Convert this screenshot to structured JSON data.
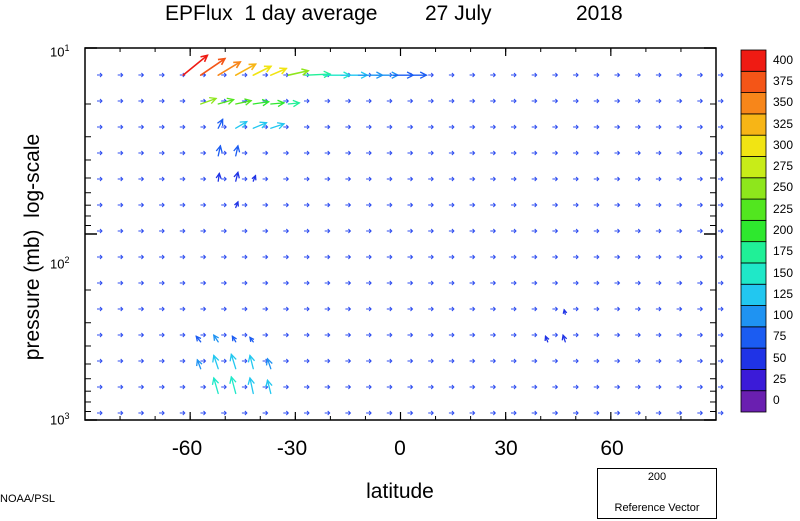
{
  "title": {
    "main": "EPFlux  1 day average",
    "date": "27 July",
    "year": "2018"
  },
  "credit": "NOAA/PSL",
  "reference": {
    "magnitude": "200",
    "label": "Reference Vector",
    "color": "#3cf07a"
  },
  "chart_data": {
    "type": "vector-field",
    "title": "EPFlux  1 day average  27 July  2018",
    "xlabel": "latitude",
    "ylabel": "pressure (mb)  log-scale",
    "xlim": [
      -90,
      90
    ],
    "ylim": [
      1000,
      10
    ],
    "y_scale": "log",
    "x_ticks": [
      "-60",
      "-30",
      "0",
      "30",
      "60"
    ],
    "y_ticks": [
      {
        "base": "10",
        "exp": "1"
      },
      {
        "base": "10",
        "exp": "2"
      },
      {
        "base": "10",
        "exp": "3"
      }
    ],
    "colorbar": {
      "levels": [
        0,
        25,
        50,
        75,
        100,
        125,
        150,
        175,
        200,
        225,
        250,
        275,
        300,
        325,
        350,
        375,
        400
      ],
      "colors": [
        "#6a1fb0",
        "#3b1bd8",
        "#1f33e6",
        "#1b5cf2",
        "#1f93f2",
        "#22c7f0",
        "#1fe8c8",
        "#20f097",
        "#2ee82e",
        "#52e61f",
        "#8ee61c",
        "#c8ec18",
        "#f1e413",
        "#f7b516",
        "#f7861a",
        "#f45517",
        "#ef1b13"
      ]
    },
    "vectors": [
      {
        "lat": -62,
        "p": 14,
        "u": 22,
        "v": 18,
        "mag": 400
      },
      {
        "lat": -57,
        "p": 14,
        "u": 22,
        "v": 15,
        "mag": 380
      },
      {
        "lat": -52,
        "p": 14,
        "u": 20,
        "v": 12,
        "mag": 360
      },
      {
        "lat": -47,
        "p": 14,
        "u": 18,
        "v": 10,
        "mag": 340
      },
      {
        "lat": -42,
        "p": 14,
        "u": 16,
        "v": 8,
        "mag": 320
      },
      {
        "lat": -37,
        "p": 14,
        "u": 14,
        "v": 6,
        "mag": 300
      },
      {
        "lat": -32,
        "p": 14,
        "u": 18,
        "v": 4,
        "mag": 260
      },
      {
        "lat": -27,
        "p": 14,
        "u": 22,
        "v": 1,
        "mag": 190
      },
      {
        "lat": -22,
        "p": 14,
        "u": 24,
        "v": 0,
        "mag": 150
      },
      {
        "lat": -17,
        "p": 14,
        "u": 24,
        "v": 0,
        "mag": 130
      },
      {
        "lat": -12,
        "p": 14,
        "u": 22,
        "v": 0,
        "mag": 110
      },
      {
        "lat": -7,
        "p": 14,
        "u": 20,
        "v": 0,
        "mag": 100
      },
      {
        "lat": -2,
        "p": 14,
        "u": 18,
        "v": 0,
        "mag": 90
      },
      {
        "lat": 3,
        "p": 14,
        "u": 14,
        "v": 0,
        "mag": 80
      },
      {
        "lat": -57,
        "p": 20,
        "u": 14,
        "v": 5,
        "mag": 250
      },
      {
        "lat": -52,
        "p": 20,
        "u": 14,
        "v": 4,
        "mag": 240
      },
      {
        "lat": -47,
        "p": 20,
        "u": 14,
        "v": 3,
        "mag": 225
      },
      {
        "lat": -42,
        "p": 20,
        "u": 14,
        "v": 2,
        "mag": 210
      },
      {
        "lat": -37,
        "p": 20,
        "u": 12,
        "v": 1,
        "mag": 200
      },
      {
        "lat": -32,
        "p": 20,
        "u": 10,
        "v": 1,
        "mag": 180
      },
      {
        "lat": -47,
        "p": 27,
        "u": 10,
        "v": 6,
        "mag": 140
      },
      {
        "lat": -42,
        "p": 27,
        "u": 12,
        "v": 5,
        "mag": 140
      },
      {
        "lat": -37,
        "p": 27,
        "u": 12,
        "v": 4,
        "mag": 130
      },
      {
        "lat": -52,
        "p": 27,
        "u": 4,
        "v": 8,
        "mag": 90
      },
      {
        "lat": -52,
        "p": 38,
        "u": 2,
        "v": 9,
        "mag": 80
      },
      {
        "lat": -47,
        "p": 38,
        "u": 2,
        "v": 9,
        "mag": 80
      },
      {
        "lat": -52,
        "p": 52,
        "u": 1,
        "v": 7,
        "mag": 70
      },
      {
        "lat": -47,
        "p": 52,
        "u": 2,
        "v": 8,
        "mag": 70
      },
      {
        "lat": -42,
        "p": 52,
        "u": 2,
        "v": 5,
        "mag": 60
      },
      {
        "lat": -47,
        "p": 72,
        "u": 2,
        "v": 5,
        "mag": 55
      },
      {
        "lat": -57,
        "p": 380,
        "u": -4,
        "v": 5,
        "mag": 90
      },
      {
        "lat": -52,
        "p": 380,
        "u": -4,
        "v": 6,
        "mag": 100
      },
      {
        "lat": -47,
        "p": 380,
        "u": -3,
        "v": 5,
        "mag": 90
      },
      {
        "lat": -42,
        "p": 380,
        "u": -3,
        "v": 4,
        "mag": 80
      },
      {
        "lat": -52,
        "p": 530,
        "u": -4,
        "v": 12,
        "mag": 140
      },
      {
        "lat": -47,
        "p": 530,
        "u": -4,
        "v": 13,
        "mag": 140
      },
      {
        "lat": -42,
        "p": 530,
        "u": -3,
        "v": 12,
        "mag": 130
      },
      {
        "lat": -37,
        "p": 530,
        "u": -3,
        "v": 9,
        "mag": 110
      },
      {
        "lat": -57,
        "p": 530,
        "u": -3,
        "v": 8,
        "mag": 100
      },
      {
        "lat": -52,
        "p": 720,
        "u": -4,
        "v": 14,
        "mag": 150
      },
      {
        "lat": -47,
        "p": 720,
        "u": -4,
        "v": 15,
        "mag": 150
      },
      {
        "lat": -42,
        "p": 720,
        "u": -3,
        "v": 14,
        "mag": 140
      },
      {
        "lat": -37,
        "p": 720,
        "u": -3,
        "v": 12,
        "mag": 130
      },
      {
        "lat": 42,
        "p": 380,
        "u": -2,
        "v": 5,
        "mag": 60
      },
      {
        "lat": 47,
        "p": 380,
        "u": -2,
        "v": 6,
        "mag": 60
      },
      {
        "lat": 47,
        "p": 270,
        "u": -1,
        "v": 4,
        "mag": 55
      }
    ]
  }
}
